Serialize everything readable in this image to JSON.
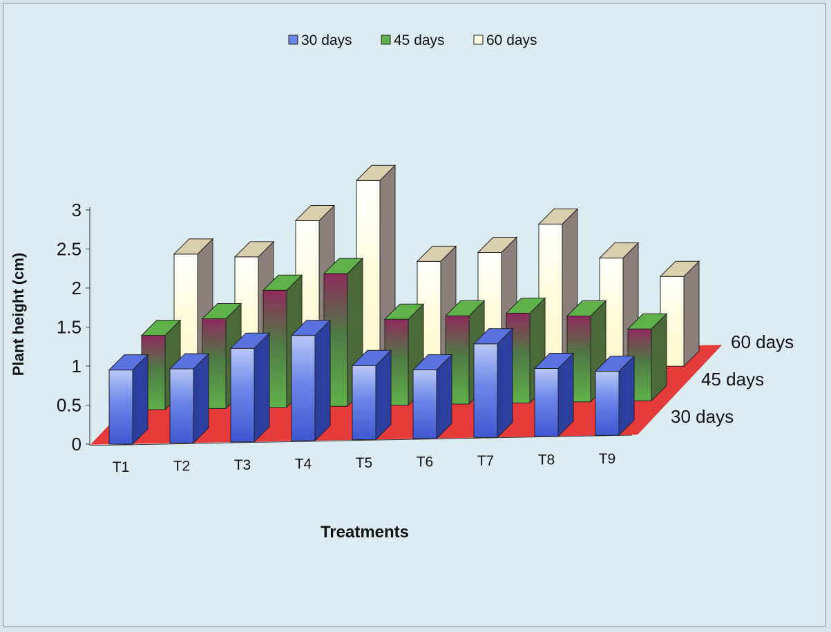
{
  "colors": {
    "background": "#dcedf2",
    "floor": "#e63b3b",
    "series_30_days": "#6b86e8",
    "series_45_days": "#8e2b5c",
    "series_45_days_top": "#5fb14a",
    "series_60_days": "#fffde0"
  },
  "chart_data": {
    "type": "bar",
    "projection": "3d-clustered-depth",
    "xlabel": "Treatments",
    "ylabel": "Plant height (cm)",
    "categories": [
      "T1",
      "T2",
      "T3",
      "T4",
      "T5",
      "T6",
      "T7",
      "T8",
      "T9"
    ],
    "ylim": [
      0,
      3
    ],
    "yticks": [
      "0",
      "0.5",
      "1",
      "1.5",
      "2",
      "2.5",
      "3"
    ],
    "legend_position": "top-center",
    "grid": false,
    "series": [
      {
        "name": "30 days",
        "values": [
          0.95,
          0.95,
          1.2,
          1.35,
          0.95,
          0.88,
          1.2,
          0.87,
          0.82
        ]
      },
      {
        "name": "45 days",
        "values": [
          0.95,
          1.15,
          1.5,
          1.7,
          1.1,
          1.13,
          1.15,
          1.1,
          0.92
        ]
      },
      {
        "name": "60 days",
        "values": [
          1.55,
          1.5,
          1.95,
          2.45,
          1.4,
          1.5,
          1.85,
          1.4,
          1.15
        ]
      }
    ]
  }
}
